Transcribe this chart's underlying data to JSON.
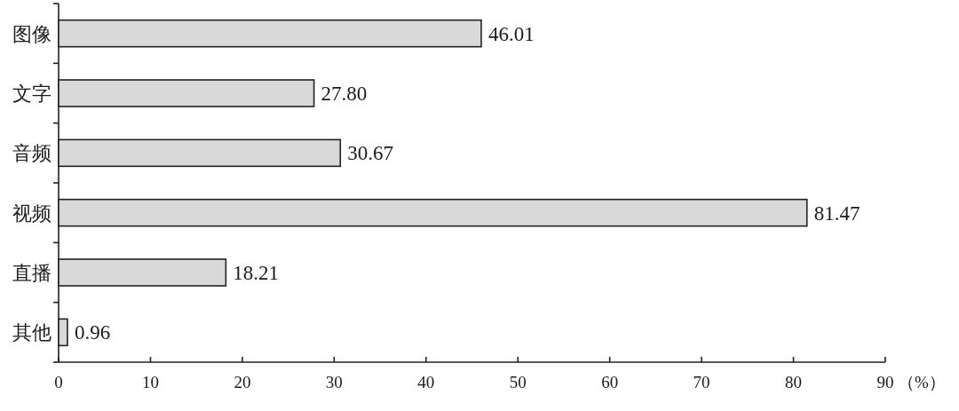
{
  "chart_data": {
    "type": "bar",
    "orientation": "horizontal",
    "categories": [
      "图像",
      "文字",
      "音频",
      "视频",
      "直播",
      "其他"
    ],
    "values": [
      46.01,
      27.8,
      30.67,
      81.47,
      18.21,
      0.96
    ],
    "value_labels": [
      "46.01",
      "27.80",
      "30.67",
      "81.47",
      "18.21",
      "0.96"
    ],
    "color": "#d9d9d9",
    "xlim": [
      0,
      90
    ],
    "xticks": [
      0,
      10,
      20,
      30,
      40,
      50,
      60,
      70,
      80,
      90
    ],
    "xlabel": "（%）"
  }
}
